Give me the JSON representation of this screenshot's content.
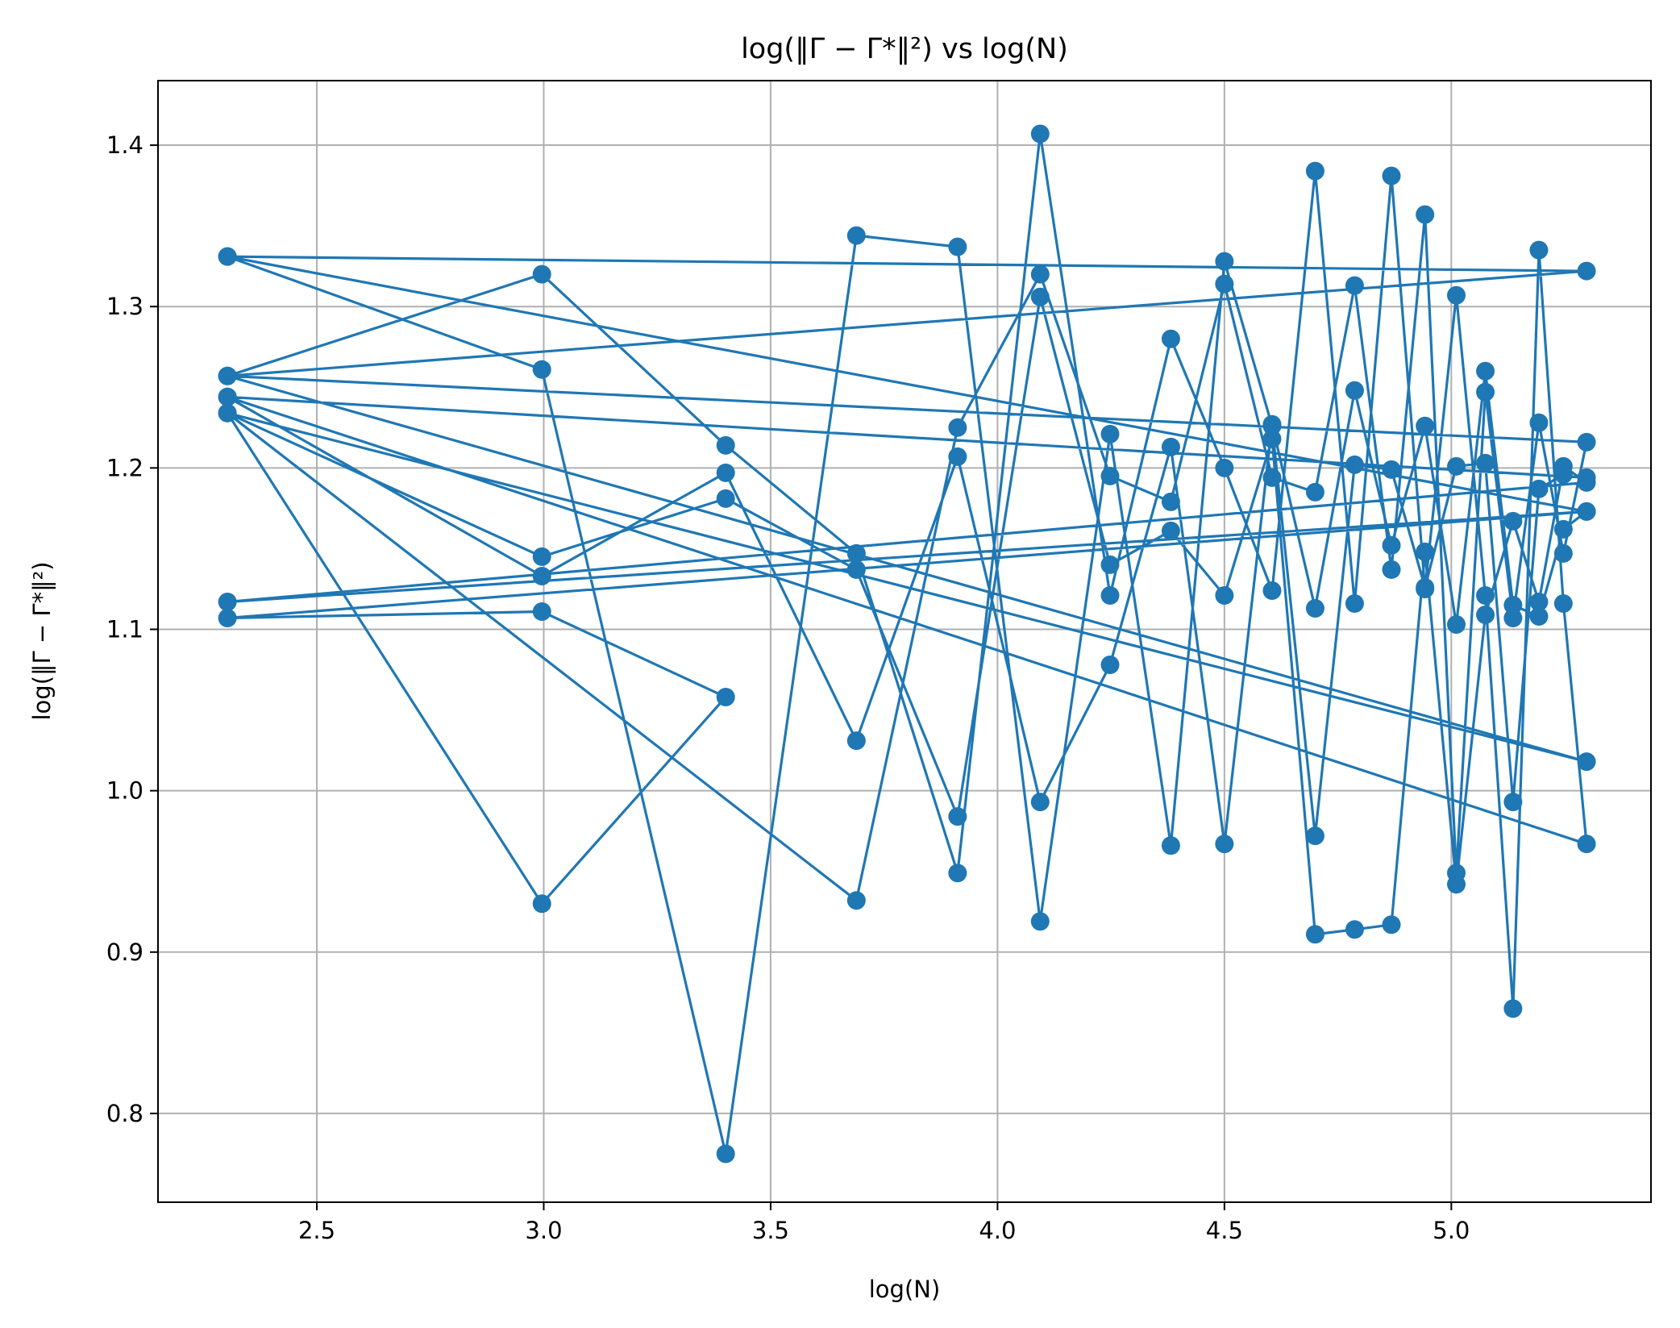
{
  "chart_data": {
    "type": "line",
    "title": "log(‖Γ − Γ*‖²) vs log(N)",
    "xlabel": "log(N)",
    "ylabel": "log(‖Γ − Γ*‖²)",
    "xlim": [
      2.15,
      5.44
    ],
    "ylim": [
      0.745,
      1.44
    ],
    "xticks": [
      2.5,
      3.0,
      3.5,
      4.0,
      4.5,
      5.0
    ],
    "xtick_labels": [
      "2.5",
      "3.0",
      "3.5",
      "4.0",
      "4.5",
      "5.0"
    ],
    "yticks": [
      0.8,
      0.9,
      1.0,
      1.1,
      1.2,
      1.3,
      1.4
    ],
    "ytick_labels": [
      "0.8",
      "0.9",
      "1.0",
      "1.1",
      "1.2",
      "1.3",
      "1.4"
    ],
    "grid": true,
    "line_color": "#1f77b4",
    "marker": "circle",
    "series": [
      {
        "values": [
          [
            2.303,
            1.331
          ],
          [
            5.298,
            1.322
          ],
          [
            2.303,
            1.257
          ],
          [
            2.996,
            1.32
          ],
          [
            3.401,
            1.214
          ],
          [
            3.689,
            1.147
          ],
          [
            3.912,
            0.949
          ],
          [
            4.094,
            1.407
          ],
          [
            4.248,
            1.121
          ],
          [
            4.382,
            1.28
          ],
          [
            4.5,
            1.2
          ],
          [
            4.605,
            1.124
          ],
          [
            4.7,
            1.384
          ],
          [
            4.787,
            1.116
          ],
          [
            4.868,
            1.381
          ],
          [
            4.942,
            1.125
          ],
          [
            5.011,
            1.307
          ],
          [
            5.075,
            1.121
          ],
          [
            5.136,
            0.865
          ],
          [
            5.193,
            1.335
          ],
          [
            5.247,
            1.116
          ],
          [
            5.298,
            0.967
          ],
          [
            2.303,
            1.244
          ],
          [
            5.298,
            1.194
          ],
          [
            2.303,
            1.244
          ],
          [
            2.996,
            1.133
          ],
          [
            3.401,
            1.197
          ],
          [
            3.689,
            1.031
          ],
          [
            3.912,
            1.207
          ],
          [
            4.094,
            0.993
          ],
          [
            4.248,
            1.078
          ],
          [
            4.382,
            1.213
          ],
          [
            4.5,
            0.967
          ],
          [
            4.605,
            1.227
          ],
          [
            4.7,
            1.113
          ],
          [
            4.787,
            1.248
          ],
          [
            4.868,
            1.152
          ],
          [
            4.942,
            1.226
          ],
          [
            5.011,
            1.103
          ],
          [
            5.075,
            1.26
          ],
          [
            5.136,
            1.115
          ],
          [
            5.193,
            1.108
          ],
          [
            5.247,
            1.162
          ],
          [
            5.298,
            1.173
          ],
          [
            2.303,
            1.107
          ],
          [
            2.996,
            1.111
          ],
          [
            3.401,
            1.058
          ],
          [
            2.996,
            0.93
          ],
          [
            2.303,
            1.234
          ],
          [
            3.689,
            0.932
          ],
          [
            3.912,
            1.225
          ],
          [
            4.094,
            1.32
          ],
          [
            4.248,
            1.195
          ],
          [
            4.382,
            1.179
          ],
          [
            4.5,
            1.314
          ],
          [
            4.605,
            1.194
          ],
          [
            4.7,
            1.185
          ],
          [
            4.787,
            1.313
          ],
          [
            4.868,
            1.137
          ],
          [
            4.942,
            1.357
          ],
          [
            5.011,
            0.949
          ],
          [
            5.075,
            1.247
          ],
          [
            5.136,
            1.107
          ],
          [
            5.193,
            1.228
          ],
          [
            5.247,
            1.147
          ],
          [
            5.298,
            1.216
          ],
          [
            2.303,
            1.257
          ],
          [
            5.298,
            1.018
          ],
          [
            2.303,
            1.234
          ],
          [
            2.996,
            1.145
          ],
          [
            3.401,
            1.181
          ],
          [
            3.689,
            1.137
          ],
          [
            3.912,
            0.984
          ],
          [
            4.094,
            1.306
          ],
          [
            4.248,
            1.14
          ],
          [
            4.382,
            1.161
          ],
          [
            4.5,
            1.121
          ],
          [
            4.605,
            1.218
          ],
          [
            4.7,
            0.911
          ],
          [
            4.787,
            0.914
          ],
          [
            4.868,
            0.917
          ],
          [
            4.942,
            1.148
          ],
          [
            5.011,
            0.942
          ],
          [
            5.075,
            1.109
          ],
          [
            5.136,
            1.167
          ],
          [
            5.193,
            1.117
          ],
          [
            5.247,
            1.201
          ],
          [
            5.298,
            1.191
          ],
          [
            2.303,
            1.117
          ],
          [
            5.298,
            1.173
          ],
          [
            2.303,
            1.331
          ],
          [
            2.996,
            1.261
          ],
          [
            3.401,
            0.775
          ],
          [
            3.689,
            1.344
          ],
          [
            3.912,
            1.337
          ],
          [
            4.094,
            0.919
          ],
          [
            4.248,
            1.221
          ],
          [
            4.382,
            0.966
          ],
          [
            4.5,
            1.328
          ],
          [
            4.605,
            1.226
          ],
          [
            4.7,
            0.972
          ],
          [
            4.787,
            1.202
          ],
          [
            4.868,
            1.199
          ],
          [
            4.942,
            1.126
          ],
          [
            5.011,
            1.201
          ],
          [
            5.075,
            1.203
          ],
          [
            5.136,
            0.993
          ],
          [
            5.193,
            1.187
          ],
          [
            5.247,
            1.196
          ]
        ]
      }
    ]
  }
}
